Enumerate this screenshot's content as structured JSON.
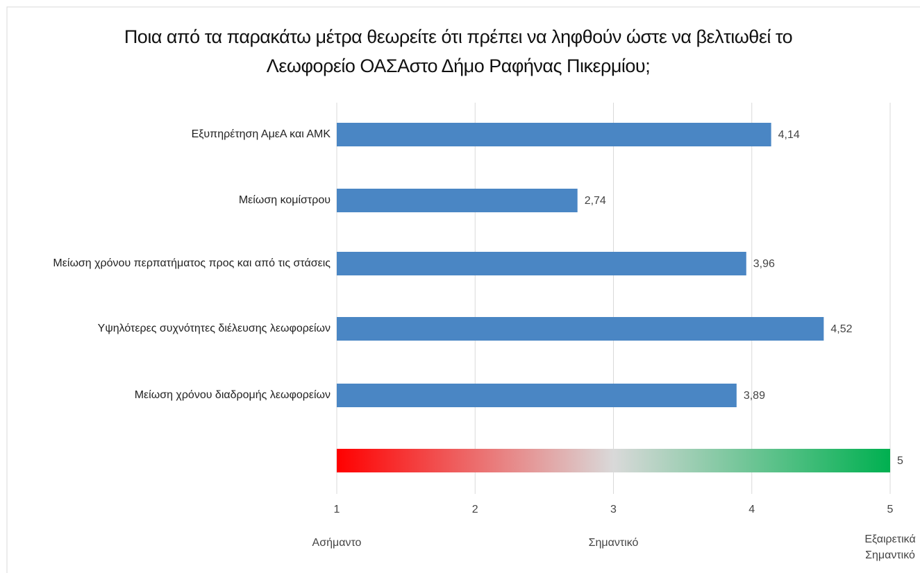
{
  "chart_data": {
    "type": "hbar",
    "title": "Ποια από τα παρακάτω μέτρα θεωρείτε ότι πρέπει να ληφθούν ώστε να βελτιωθεί το Λεωφορείο ΟΑΣΑστο Δήμο Ραφήνας Πικερμίου;",
    "categories": [
      "Εξυπηρέτηση ΑμεΑ και ΑΜΚ",
      "Μείωση κομίστρου",
      "Μείωση χρόνου περπατήματος προς και από τις στάσεις",
      "Υψηλότερες συχνότητες διέλευσης λεωφορείων",
      "Μείωση χρόνου διαδρομής λεωφορείων",
      null
    ],
    "values": [
      4.14,
      2.74,
      3.96,
      4.52,
      3.89,
      5
    ],
    "value_labels": [
      "4,14",
      "2,74",
      "3,96",
      "4,52",
      "3,89",
      "5"
    ],
    "color": "#4a86c4",
    "scale_bar_gradient": [
      "#ff0000",
      "#d9d9d9",
      "#00b050"
    ],
    "xlim": [
      1,
      5
    ],
    "xticks": [
      1,
      2,
      3,
      4,
      5
    ],
    "scale_labels": [
      {
        "value": 1,
        "label": "Ασήμαντο"
      },
      {
        "value": 3,
        "label": "Σημαντικό"
      },
      {
        "value": 5,
        "label": "Εξαιρετικά Σημαντικό"
      }
    ],
    "grid": true
  }
}
